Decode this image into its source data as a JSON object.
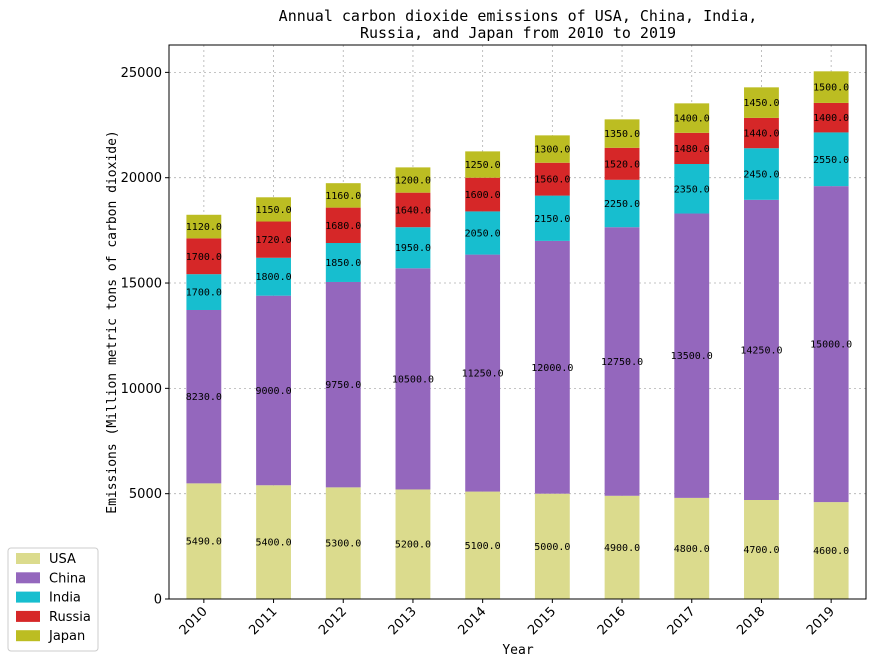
{
  "chart_data": {
    "type": "bar",
    "stacked": true,
    "title_lines": [
      "Annual carbon dioxide emissions of USA, China, India,",
      "Russia, and Japan from 2010 to 2019"
    ],
    "xlabel": "Year",
    "ylabel": "Emissions (Million metric tons of carbon dioxide)",
    "categories": [
      "2010",
      "2011",
      "2012",
      "2013",
      "2014",
      "2015",
      "2016",
      "2017",
      "2018",
      "2019"
    ],
    "ylim": [
      0,
      26300
    ],
    "yticks": [
      0,
      5000,
      10000,
      15000,
      20000,
      25000
    ],
    "grid": true,
    "legend_position": "bottom-left, outside axes",
    "series": [
      {
        "name": "USA",
        "color": "#dbdb8d",
        "values": [
          5490,
          5400,
          5300,
          5200,
          5100,
          5000,
          4900,
          4800,
          4700,
          4600
        ]
      },
      {
        "name": "China",
        "color": "#9467bd",
        "values": [
          8230,
          9000,
          9750,
          10500,
          11250,
          12000,
          12750,
          13500,
          14250,
          15000
        ]
      },
      {
        "name": "India",
        "color": "#17becf",
        "values": [
          1700,
          1800,
          1850,
          1950,
          2050,
          2150,
          2250,
          2350,
          2450,
          2550
        ]
      },
      {
        "name": "Russia",
        "color": "#d62728",
        "values": [
          1700,
          1720,
          1680,
          1640,
          1600,
          1560,
          1520,
          1480,
          1440,
          1400
        ]
      },
      {
        "name": "Japan",
        "color": "#bcbd22",
        "values": [
          1120,
          1150,
          1160,
          1200,
          1250,
          1300,
          1350,
          1400,
          1450,
          1500
        ]
      }
    ]
  }
}
